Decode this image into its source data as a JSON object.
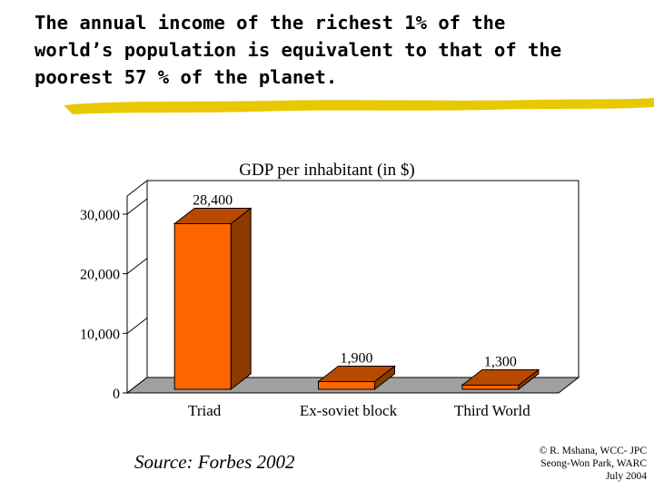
{
  "slide": {
    "title": "The annual income of the richest 1% of the\nworld’s population is equivalent to that of the\npoorest 57 % of the planet.",
    "source": "Source: Forbes 2002",
    "credit_lines": [
      "© R. Mshana, WCC- JPC",
      "Seong-Won Park, WARC",
      "July 2004"
    ]
  },
  "colors": {
    "bar_front": "#ff6600",
    "bar_side": "#8b3a00",
    "bar_top": "#b84a00",
    "wall": "#ffffff",
    "floor": "#a0a0a0",
    "brush": "#e8c800"
  },
  "chart_data": {
    "type": "bar",
    "title": "GDP per inhabitant (in $)",
    "categories": [
      "Triad",
      "Ex-soviet block",
      "Third World"
    ],
    "values": [
      28400,
      1900,
      1300
    ],
    "data_labels": [
      "28,400",
      "1,900",
      "1,300"
    ],
    "y_ticks": [
      0,
      10000,
      20000,
      30000
    ],
    "y_tick_labels": [
      "0",
      "10,000",
      "20,000",
      "30,000"
    ],
    "ylim": [
      0,
      30000
    ],
    "xlabel": "",
    "ylabel": "",
    "grid": false,
    "legend": "none",
    "style": "3d-column"
  }
}
